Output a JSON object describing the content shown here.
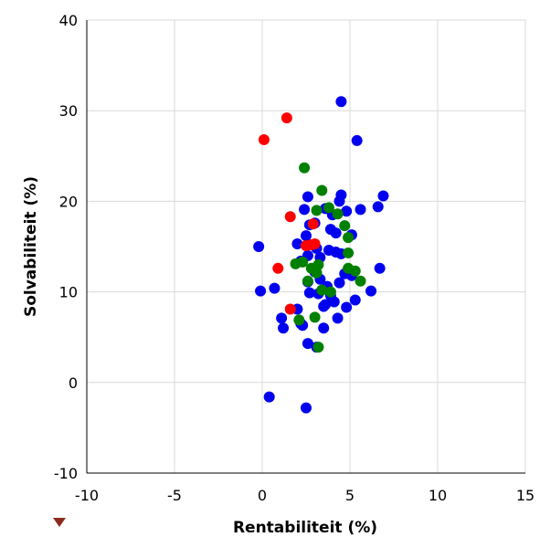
{
  "chart_data": {
    "type": "scatter",
    "title": "",
    "xlabel": "Rentabiliteit (%)",
    "ylabel": "Solvabiliteit (%)",
    "xlim": [
      -10,
      15
    ],
    "ylim": [
      -10,
      40
    ],
    "xticks": [
      -10,
      -5,
      0,
      5,
      10,
      15
    ],
    "yticks": [
      -10,
      0,
      10,
      20,
      30,
      40
    ],
    "xtick_labels": [
      "-10",
      "-5",
      "0",
      "5",
      "10",
      "15"
    ],
    "ytick_labels": [
      "-10",
      "0",
      "10",
      "20",
      "30",
      "40"
    ],
    "grid": true,
    "legend": "none",
    "series": [
      {
        "color": "#0000ee",
        "points": [
          [
            4.5,
            31.0
          ],
          [
            5.4,
            26.7
          ],
          [
            6.9,
            20.6
          ],
          [
            4.5,
            20.7
          ],
          [
            2.6,
            20.5
          ],
          [
            4.4,
            20.0
          ],
          [
            6.6,
            19.4
          ],
          [
            5.6,
            19.1
          ],
          [
            4.8,
            18.9
          ],
          [
            2.4,
            19.1
          ],
          [
            3.6,
            19.2
          ],
          [
            4.0,
            18.5
          ],
          [
            3.0,
            17.6
          ],
          [
            2.7,
            17.4
          ],
          [
            3.9,
            16.9
          ],
          [
            5.1,
            16.3
          ],
          [
            4.2,
            16.5
          ],
          [
            2.5,
            16.2
          ],
          [
            2.0,
            15.3
          ],
          [
            -0.2,
            15.0
          ],
          [
            3.1,
            14.8
          ],
          [
            3.8,
            14.6
          ],
          [
            4.2,
            14.4
          ],
          [
            4.5,
            14.2
          ],
          [
            2.6,
            14.0
          ],
          [
            3.3,
            13.8
          ],
          [
            2.2,
            13.4
          ],
          [
            6.7,
            12.6
          ],
          [
            3.0,
            12.2
          ],
          [
            4.7,
            12.0
          ],
          [
            5.1,
            11.8
          ],
          [
            3.3,
            11.4
          ],
          [
            2.6,
            11.1
          ],
          [
            4.4,
            11.0
          ],
          [
            3.7,
            10.6
          ],
          [
            0.7,
            10.4
          ],
          [
            -0.1,
            10.1
          ],
          [
            6.2,
            10.1
          ],
          [
            2.7,
            9.9
          ],
          [
            3.2,
            9.8
          ],
          [
            3.9,
            9.6
          ],
          [
            5.3,
            9.1
          ],
          [
            4.1,
            8.9
          ],
          [
            3.6,
            8.6
          ],
          [
            2.0,
            8.1
          ],
          [
            4.8,
            8.3
          ],
          [
            3.5,
            8.4
          ],
          [
            1.1,
            7.1
          ],
          [
            4.3,
            7.1
          ],
          [
            2.2,
            6.5
          ],
          [
            2.3,
            6.3
          ],
          [
            1.2,
            6.0
          ],
          [
            3.5,
            6.0
          ],
          [
            2.6,
            4.3
          ],
          [
            3.1,
            3.9
          ],
          [
            0.4,
            -1.6
          ],
          [
            2.5,
            -2.8
          ]
        ]
      },
      {
        "color": "#008000",
        "points": [
          [
            2.4,
            23.7
          ],
          [
            3.4,
            21.2
          ],
          [
            3.1,
            19.0
          ],
          [
            3.8,
            19.3
          ],
          [
            4.3,
            18.6
          ],
          [
            4.7,
            17.3
          ],
          [
            4.9,
            16.0
          ],
          [
            4.9,
            14.3
          ],
          [
            2.3,
            13.3
          ],
          [
            3.2,
            13.0
          ],
          [
            1.9,
            13.1
          ],
          [
            2.8,
            12.6
          ],
          [
            4.9,
            12.6
          ],
          [
            3.1,
            12.1
          ],
          [
            5.3,
            12.3
          ],
          [
            2.6,
            11.2
          ],
          [
            5.6,
            11.2
          ],
          [
            3.4,
            10.2
          ],
          [
            3.9,
            10.0
          ],
          [
            2.1,
            6.9
          ],
          [
            3.0,
            7.2
          ],
          [
            3.2,
            3.9
          ]
        ]
      },
      {
        "color": "#ff0000",
        "points": [
          [
            1.4,
            29.2
          ],
          [
            0.1,
            26.8
          ],
          [
            1.6,
            18.3
          ],
          [
            2.9,
            17.5
          ],
          [
            2.5,
            15.1
          ],
          [
            2.8,
            15.2
          ],
          [
            3.0,
            15.3
          ],
          [
            0.9,
            12.6
          ],
          [
            1.6,
            8.1
          ]
        ]
      }
    ]
  }
}
